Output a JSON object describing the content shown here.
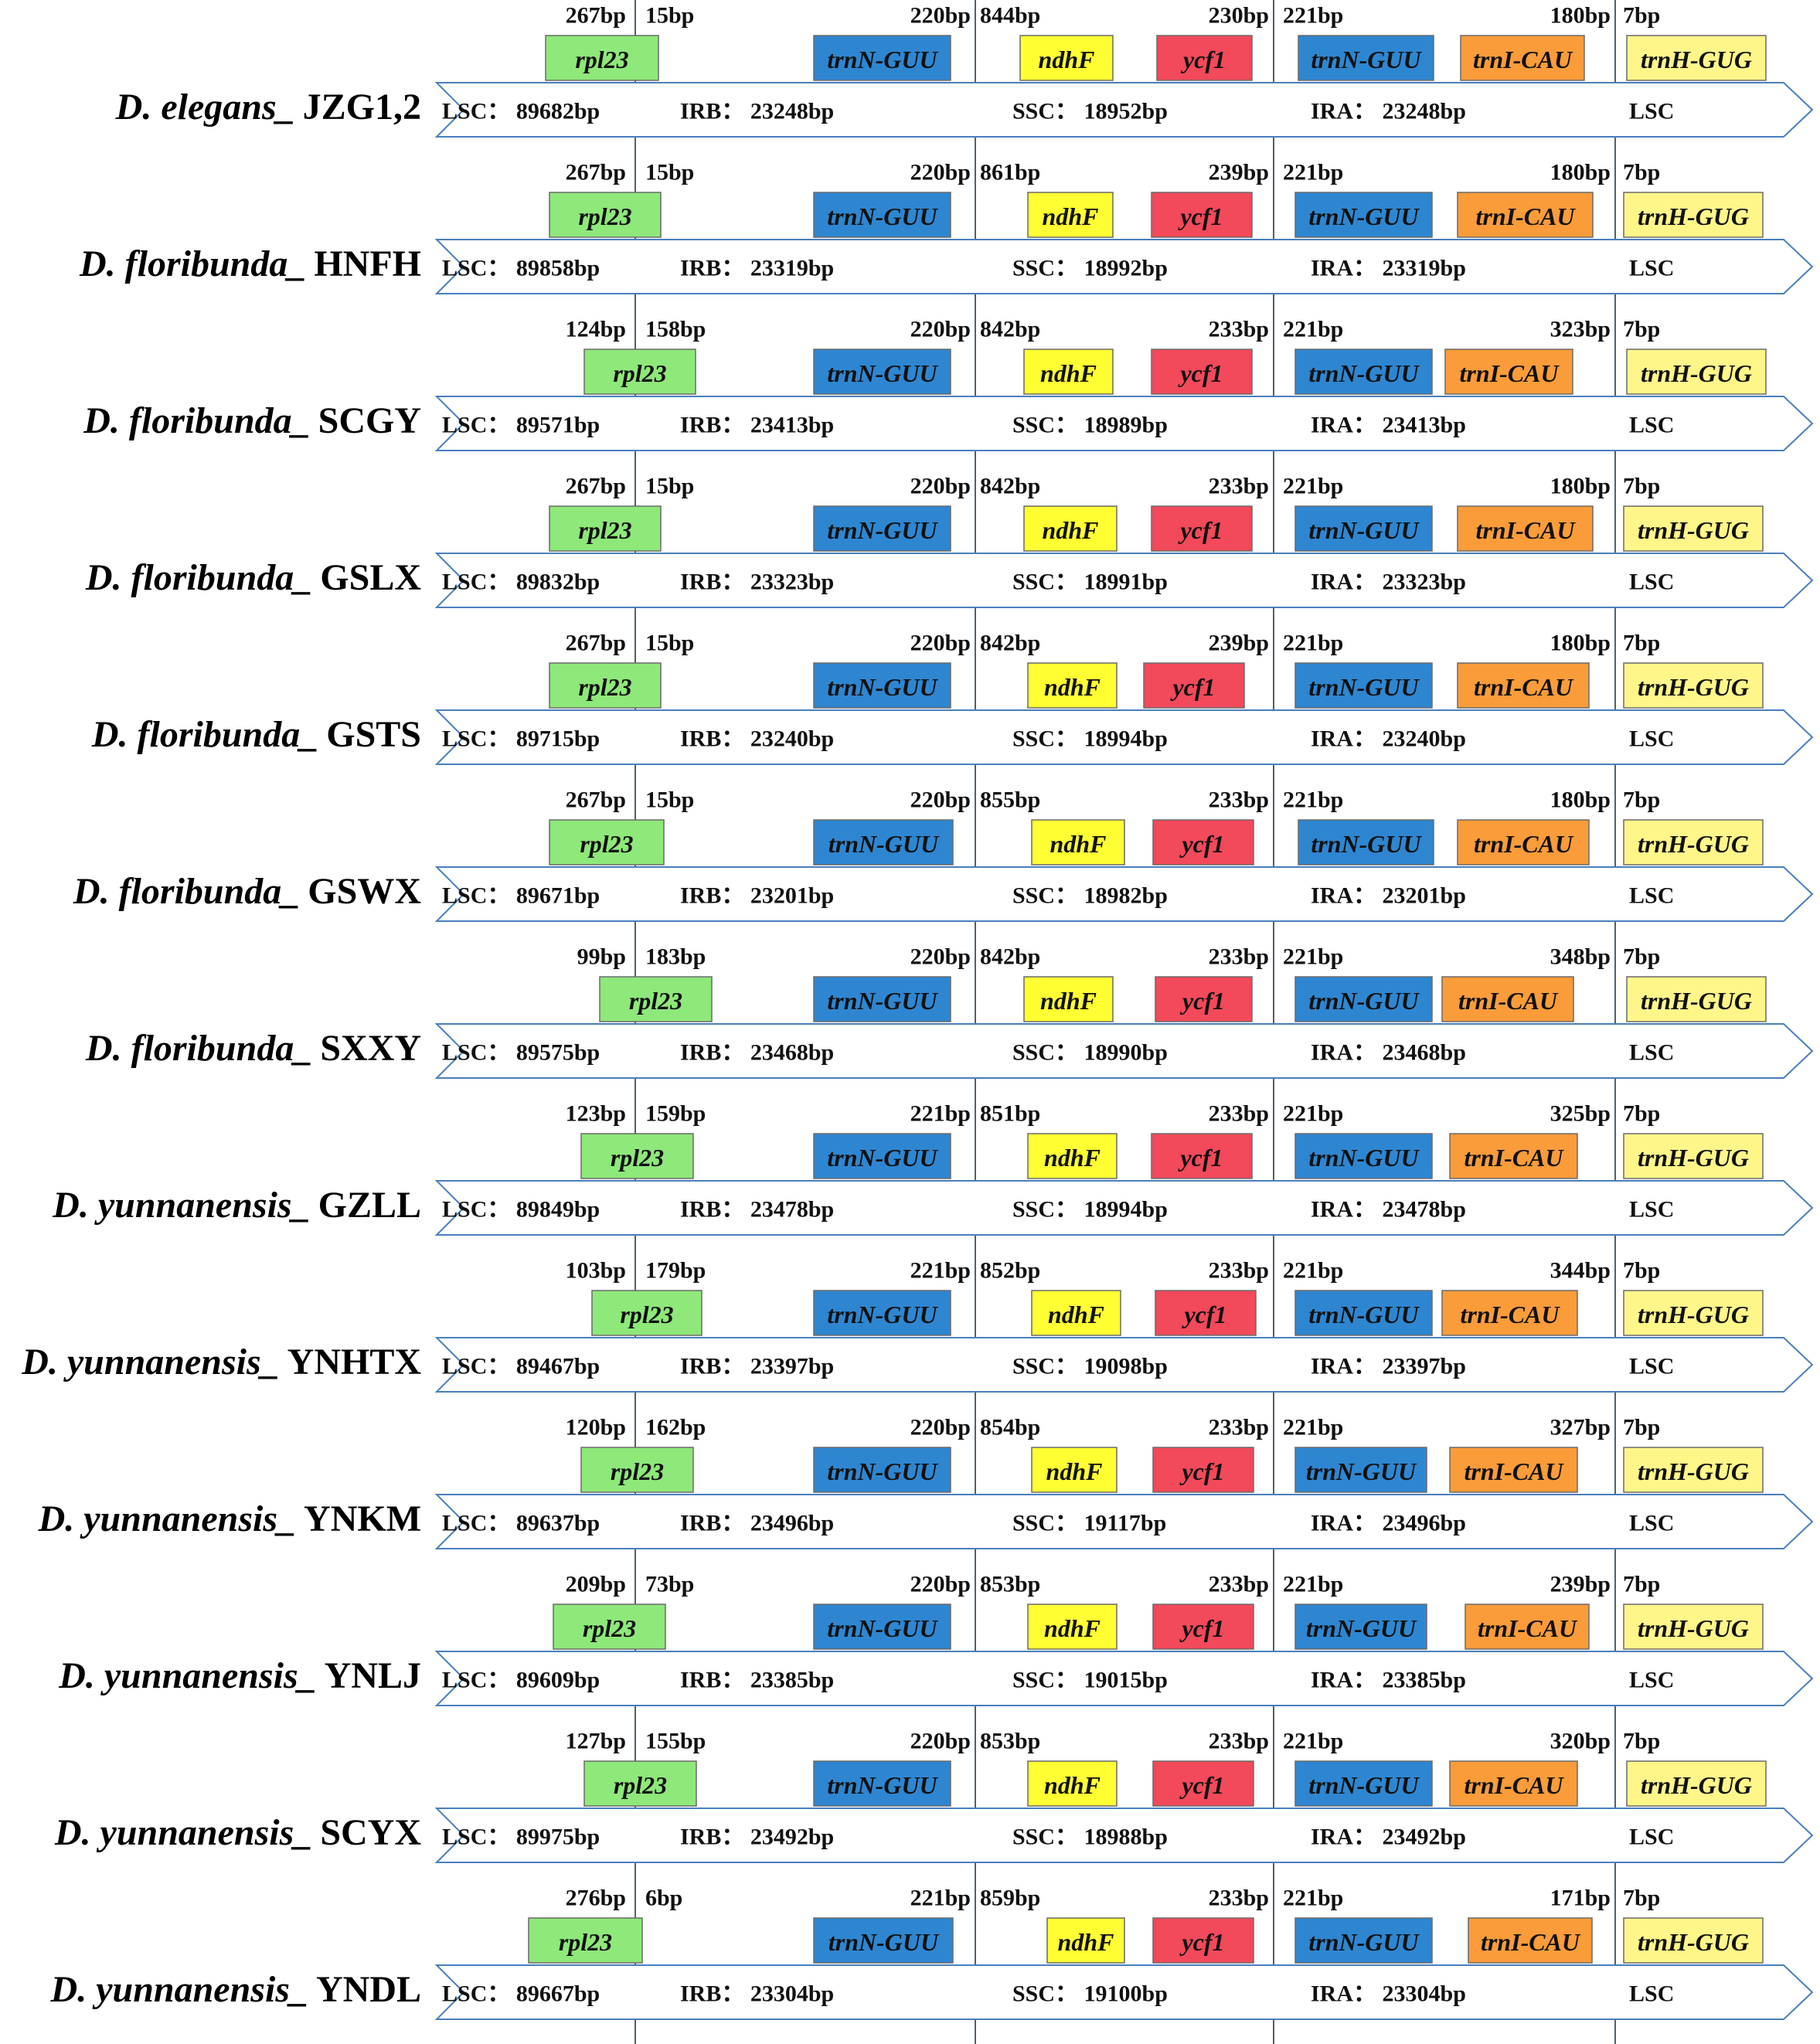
{
  "genes": {
    "rpl23": {
      "label": "rpl23",
      "color": "#8ee87a"
    },
    "trnN": {
      "label": "trnN-GUU",
      "color": "#2e86d1"
    },
    "ndhF": {
      "label": "ndhF",
      "color": "#ffff33"
    },
    "ycf1": {
      "label": "ycf1",
      "color": "#f2495b"
    },
    "trnI": {
      "label": "trnI-CAU",
      "color": "#fa9c3a"
    },
    "trnH": {
      "label": "trnH-GUG",
      "color": "#fff68a"
    }
  },
  "region_separator": "：",
  "region_names": {
    "lsc": "LSC",
    "irb": "IRB",
    "ssc": "SSC",
    "ira": "IRA",
    "lsc_end": "LSC"
  },
  "colors": {
    "arrow_outline": "#4a7fbd",
    "boundary_line": "#506070",
    "gene_outline": "#6a6a6a"
  },
  "rows": [
    {
      "species": "D. elegans_",
      "sample": "JZG1,2",
      "bp": {
        "rpl23_left": "267bp",
        "rpl23_right": "15bp",
        "trnN_left": "220bp",
        "ndhF_right": "844bp",
        "ycf1_left": "230bp",
        "trnN2_right": "221bp",
        "trnI_left": "180bp",
        "trnH_right": "7bp"
      },
      "regions": {
        "lsc": "89682bp",
        "irb": "23248bp",
        "ssc": "18952bp",
        "ira": "23248bp"
      }
    },
    {
      "species": "D. floribunda_",
      "sample": "HNFH",
      "bp": {
        "rpl23_left": "267bp",
        "rpl23_right": "15bp",
        "trnN_left": "220bp",
        "ndhF_right": "861bp",
        "ycf1_left": "239bp",
        "trnN2_right": "221bp",
        "trnI_left": "180bp",
        "trnH_right": "7bp"
      },
      "regions": {
        "lsc": "89858bp",
        "irb": "23319bp",
        "ssc": "18992bp",
        "ira": "23319bp"
      }
    },
    {
      "species": "D. floribunda_",
      "sample": "SCGY",
      "bp": {
        "rpl23_left": "124bp",
        "rpl23_right": "158bp",
        "trnN_left": "220bp",
        "ndhF_right": "842bp",
        "ycf1_left": "233bp",
        "trnN2_right": "221bp",
        "trnI_left": "323bp",
        "trnH_right": "7bp"
      },
      "regions": {
        "lsc": "89571bp",
        "irb": "23413bp",
        "ssc": "18989bp",
        "ira": "23413bp"
      }
    },
    {
      "species": "D. floribunda_",
      "sample": "GSLX",
      "bp": {
        "rpl23_left": "267bp",
        "rpl23_right": "15bp",
        "trnN_left": "220bp",
        "ndhF_right": "842bp",
        "ycf1_left": "233bp",
        "trnN2_right": "221bp",
        "trnI_left": "180bp",
        "trnH_right": "7bp"
      },
      "regions": {
        "lsc": "89832bp",
        "irb": "23323bp",
        "ssc": "18991bp",
        "ira": "23323bp"
      }
    },
    {
      "species": "D. floribunda_",
      "sample": "GSTS",
      "bp": {
        "rpl23_left": "267bp",
        "rpl23_right": "15bp",
        "trnN_left": "220bp",
        "ndhF_right": "842bp",
        "ycf1_left": "239bp",
        "trnN2_right": "221bp",
        "trnI_left": "180bp",
        "trnH_right": "7bp"
      },
      "regions": {
        "lsc": "89715bp",
        "irb": "23240bp",
        "ssc": "18994bp",
        "ira": "23240bp"
      }
    },
    {
      "species": "D. floribunda_",
      "sample": "GSWX",
      "bp": {
        "rpl23_left": "267bp",
        "rpl23_right": "15bp",
        "trnN_left": "220bp",
        "ndhF_right": "855bp",
        "ycf1_left": "233bp",
        "trnN2_right": "221bp",
        "trnI_left": "180bp",
        "trnH_right": "7bp"
      },
      "regions": {
        "lsc": "89671bp",
        "irb": "23201bp",
        "ssc": "18982bp",
        "ira": "23201bp"
      }
    },
    {
      "species": "D. floribunda_",
      "sample": "SXXY",
      "bp": {
        "rpl23_left": "99bp",
        "rpl23_right": "183bp",
        "trnN_left": "220bp",
        "ndhF_right": "842bp",
        "ycf1_left": "233bp",
        "trnN2_right": "221bp",
        "trnI_left": "348bp",
        "trnH_right": "7bp"
      },
      "regions": {
        "lsc": "89575bp",
        "irb": "23468bp",
        "ssc": "18990bp",
        "ira": "23468bp"
      }
    },
    {
      "species": "D. yunnanensis_",
      "sample": "GZLL",
      "bp": {
        "rpl23_left": "123bp",
        "rpl23_right": "159bp",
        "trnN_left": "221bp",
        "ndhF_right": "851bp",
        "ycf1_left": "233bp",
        "trnN2_right": "221bp",
        "trnI_left": "325bp",
        "trnH_right": "7bp"
      },
      "regions": {
        "lsc": "89849bp",
        "irb": "23478bp",
        "ssc": "18994bp",
        "ira": "23478bp"
      }
    },
    {
      "species": "D. yunnanensis_",
      "sample": "YNHTX",
      "bp": {
        "rpl23_left": "103bp",
        "rpl23_right": "179bp",
        "trnN_left": "221bp",
        "ndhF_right": "852bp",
        "ycf1_left": "233bp",
        "trnN2_right": "221bp",
        "trnI_left": "344bp",
        "trnH_right": "7bp"
      },
      "regions": {
        "lsc": "89467bp",
        "irb": "23397bp",
        "ssc": "19098bp",
        "ira": "23397bp"
      }
    },
    {
      "species": "D. yunnanensis_",
      "sample": "YNKM",
      "bp": {
        "rpl23_left": "120bp",
        "rpl23_right": "162bp",
        "trnN_left": "220bp",
        "ndhF_right": "854bp",
        "ycf1_left": "233bp",
        "trnN2_right": "221bp",
        "trnI_left": "327bp",
        "trnH_right": "7bp"
      },
      "regions": {
        "lsc": "89637bp",
        "irb": "23496bp",
        "ssc": "19117bp",
        "ira": "23496bp"
      }
    },
    {
      "species": "D. yunnanensis_",
      "sample": "YNLJ",
      "bp": {
        "rpl23_left": "209bp",
        "rpl23_right": "73bp",
        "trnN_left": "220bp",
        "ndhF_right": "853bp",
        "ycf1_left": "233bp",
        "trnN2_right": "221bp",
        "trnI_left": "239bp",
        "trnH_right": "7bp"
      },
      "regions": {
        "lsc": "89609bp",
        "irb": "23385bp",
        "ssc": "19015bp",
        "ira": "23385bp"
      }
    },
    {
      "species": "D. yunnanensis_",
      "sample": "SCYX",
      "bp": {
        "rpl23_left": "127bp",
        "rpl23_right": "155bp",
        "trnN_left": "220bp",
        "ndhF_right": "853bp",
        "ycf1_left": "233bp",
        "trnN2_right": "221bp",
        "trnI_left": "320bp",
        "trnH_right": "7bp"
      },
      "regions": {
        "lsc": "89975bp",
        "irb": "23492bp",
        "ssc": "18988bp",
        "ira": "23492bp"
      }
    },
    {
      "species": "D. yunnanensis_",
      "sample": "YNDL",
      "bp": {
        "rpl23_left": "276bp",
        "rpl23_right": "6bp",
        "trnN_left": "221bp",
        "ndhF_right": "859bp",
        "ycf1_left": "233bp",
        "trnN2_right": "221bp",
        "trnI_left": "171bp",
        "trnH_right": "7bp"
      },
      "regions": {
        "lsc": "89667bp",
        "irb": "23304bp",
        "ssc": "19100bp",
        "ira": "23304bp"
      }
    }
  ]
}
